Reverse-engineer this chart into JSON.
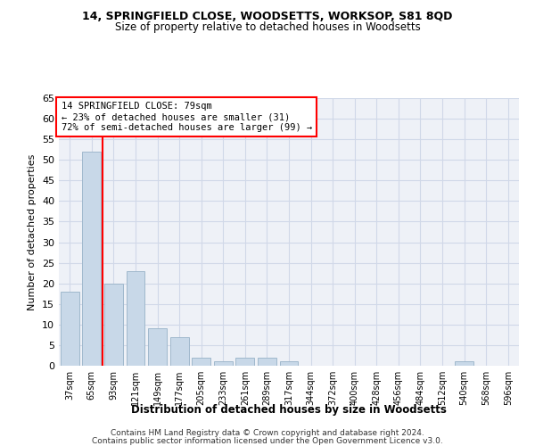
{
  "title1": "14, SPRINGFIELD CLOSE, WOODSETTS, WORKSOP, S81 8QD",
  "title2": "Size of property relative to detached houses in Woodsetts",
  "xlabel": "Distribution of detached houses by size in Woodsetts",
  "ylabel": "Number of detached properties",
  "categories": [
    "37sqm",
    "65sqm",
    "93sqm",
    "121sqm",
    "149sqm",
    "177sqm",
    "205sqm",
    "233sqm",
    "261sqm",
    "289sqm",
    "317sqm",
    "344sqm",
    "372sqm",
    "400sqm",
    "428sqm",
    "456sqm",
    "484sqm",
    "512sqm",
    "540sqm",
    "568sqm",
    "596sqm"
  ],
  "values": [
    18,
    52,
    20,
    23,
    9,
    7,
    2,
    1,
    2,
    2,
    1,
    0,
    0,
    0,
    0,
    0,
    0,
    0,
    1,
    0,
    0
  ],
  "bar_color": "#c8d8e8",
  "bar_edge_color": "#a0b8cc",
  "grid_color": "#d0d8e8",
  "vline_x": 1.5,
  "annotation_text": "14 SPRINGFIELD CLOSE: 79sqm\n← 23% of detached houses are smaller (31)\n72% of semi-detached houses are larger (99) →",
  "annotation_box_color": "white",
  "annotation_box_edge": "red",
  "vline_color": "red",
  "ylim": [
    0,
    65
  ],
  "yticks": [
    0,
    5,
    10,
    15,
    20,
    25,
    30,
    35,
    40,
    45,
    50,
    55,
    60,
    65
  ],
  "footer1": "Contains HM Land Registry data © Crown copyright and database right 2024.",
  "footer2": "Contains public sector information licensed under the Open Government Licence v3.0.",
  "bg_color": "#eef1f7"
}
